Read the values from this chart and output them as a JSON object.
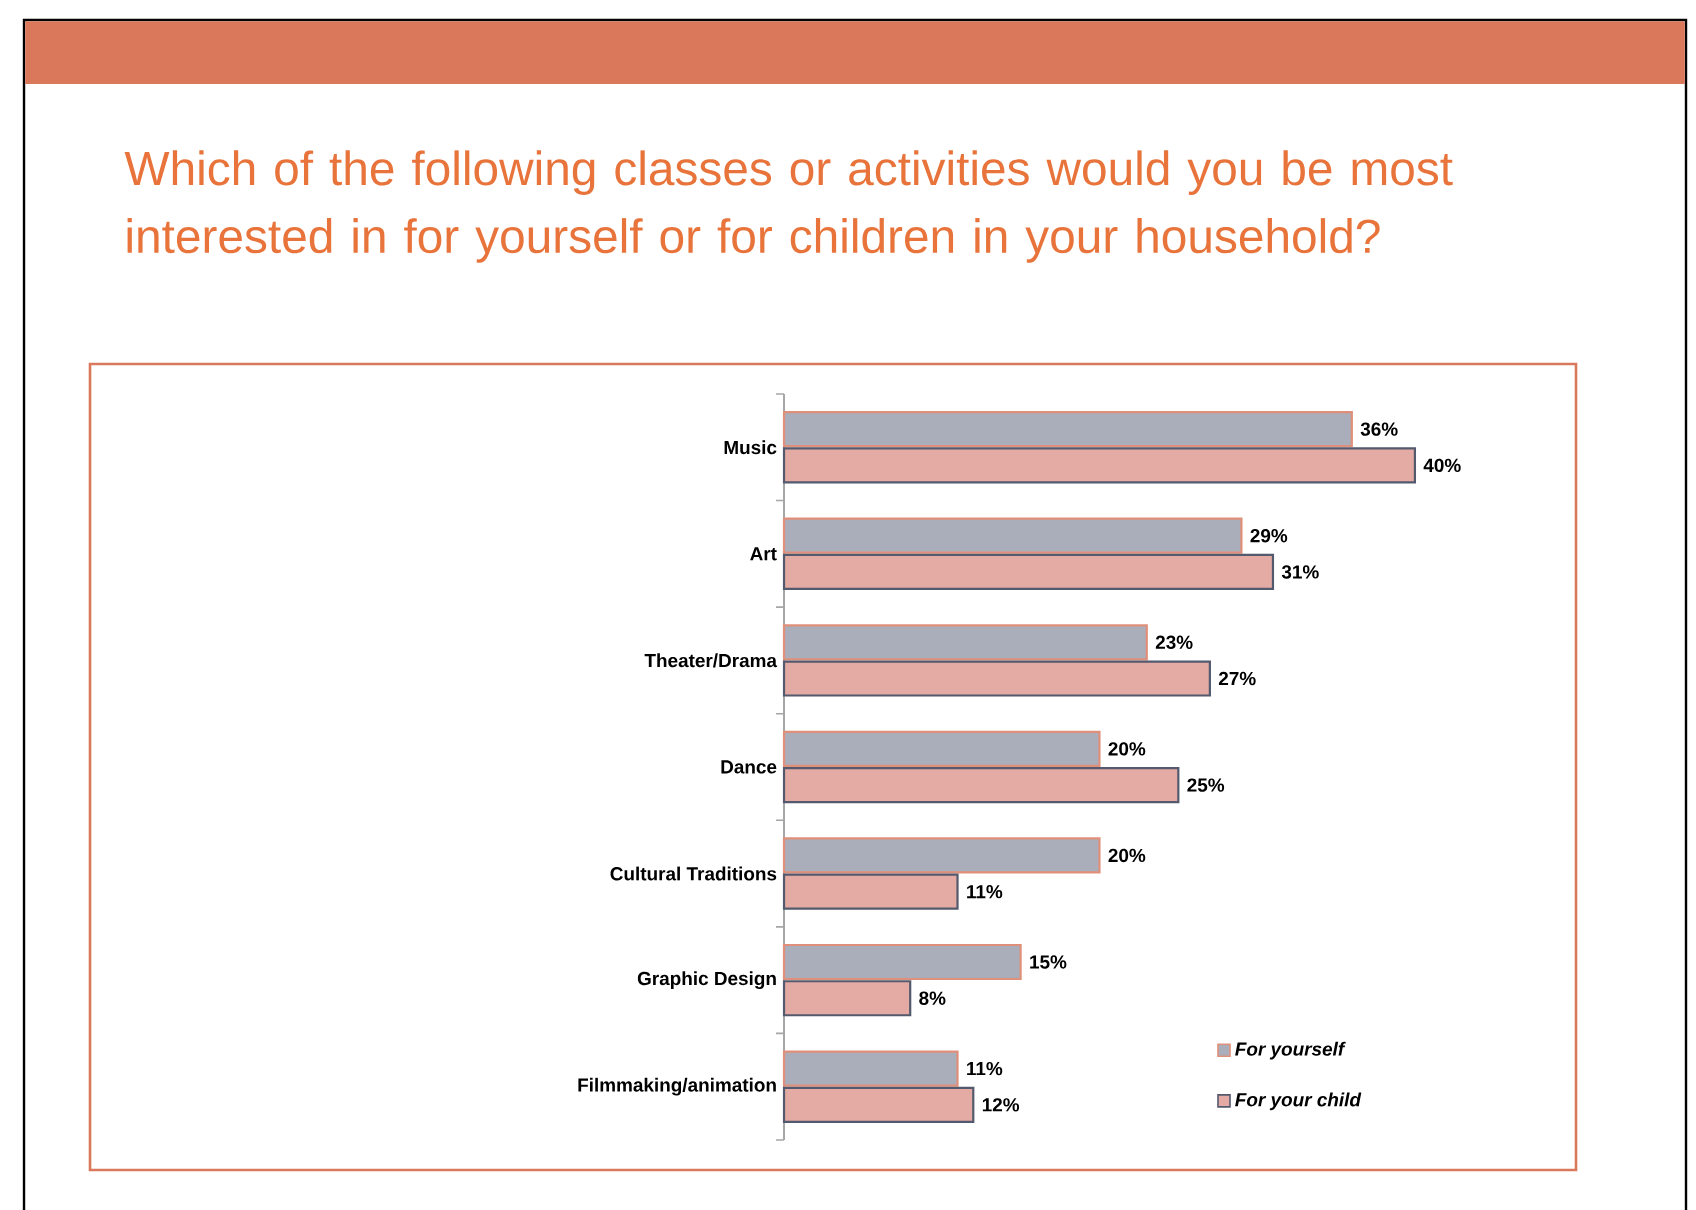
{
  "chart_data": {
    "type": "bar",
    "orientation": "horizontal",
    "title": "Which of the following classes or activities would you be most interested in for yourself or for children in your household?",
    "categories": [
      "Music",
      "Art",
      "Theater/Drama",
      "Dance",
      "Cultural Traditions",
      "Graphic Design",
      "Filmmaking/animation"
    ],
    "series": [
      {
        "name": "For yourself",
        "color": "#aaaeba",
        "values": [
          36,
          29,
          23,
          20,
          20,
          15,
          11
        ],
        "value_labels": [
          "36%",
          "29%",
          "23%",
          "20%",
          "20%",
          "15%",
          "11%"
        ]
      },
      {
        "name": "For your child",
        "color": "#e3aba3",
        "values": [
          40,
          31,
          27,
          25,
          11,
          8,
          12
        ],
        "value_labels": [
          "40%",
          "31%",
          "27%",
          "25%",
          "11%",
          "8%",
          "12%"
        ]
      }
    ],
    "legend": "bottom right"
  }
}
